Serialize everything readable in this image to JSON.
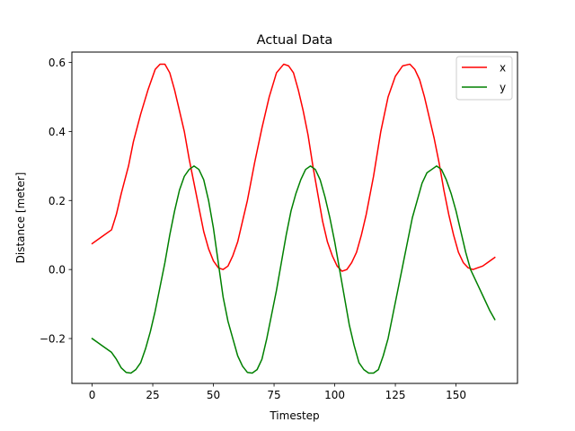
{
  "chart_data": {
    "type": "line",
    "title": "Actual Data",
    "xlabel": "Timestep",
    "ylabel": "Distance [meter]",
    "xlim": [
      -8.35,
      175.35
    ],
    "ylim": [
      -0.33,
      0.63
    ],
    "xticks": [
      0,
      25,
      50,
      75,
      100,
      125,
      150
    ],
    "xtick_labels": [
      "0",
      "25",
      "50",
      "75",
      "100",
      "125",
      "150"
    ],
    "yticks": [
      -0.2,
      0.0,
      0.2,
      0.4,
      0.6
    ],
    "ytick_labels": [
      "−0.2",
      "0.0",
      "0.2",
      "0.4",
      "0.6"
    ],
    "legend_position": "top-right",
    "series": [
      {
        "name": "x",
        "color": "#ff0000",
        "x": [
          0,
          4,
          8,
          10,
          12,
          15,
          17,
          20,
          23,
          26,
          28,
          30,
          32,
          34,
          36,
          38,
          40,
          42,
          44,
          46,
          48,
          50,
          52,
          54,
          56,
          58,
          60,
          62,
          64,
          67,
          70,
          73,
          76,
          79,
          81,
          83,
          85,
          87,
          89,
          91,
          93,
          95,
          97,
          99,
          101,
          103,
          105,
          107,
          109,
          111,
          113,
          116,
          119,
          122,
          125,
          128,
          131,
          133,
          135,
          137,
          139,
          141,
          143,
          145,
          147,
          149,
          151,
          153,
          155,
          157,
          159,
          161,
          163,
          166
        ],
        "y": [
          0.075,
          0.095,
          0.115,
          0.16,
          0.22,
          0.3,
          0.37,
          0.45,
          0.52,
          0.58,
          0.595,
          0.595,
          0.57,
          0.52,
          0.46,
          0.4,
          0.32,
          0.25,
          0.18,
          0.11,
          0.06,
          0.025,
          0.005,
          0.0,
          0.01,
          0.04,
          0.08,
          0.14,
          0.2,
          0.31,
          0.41,
          0.5,
          0.57,
          0.595,
          0.59,
          0.57,
          0.52,
          0.46,
          0.39,
          0.3,
          0.22,
          0.14,
          0.08,
          0.04,
          0.01,
          -0.005,
          0.0,
          0.02,
          0.05,
          0.1,
          0.16,
          0.27,
          0.4,
          0.5,
          0.56,
          0.59,
          0.595,
          0.58,
          0.55,
          0.5,
          0.44,
          0.38,
          0.31,
          0.23,
          0.16,
          0.1,
          0.05,
          0.02,
          0.005,
          0.0,
          0.005,
          0.01,
          0.02,
          0.035
        ]
      },
      {
        "name": "y",
        "color": "#008000",
        "x": [
          0,
          4,
          8,
          10,
          12,
          14,
          16,
          18,
          20,
          22,
          24,
          26,
          28,
          30,
          32,
          34,
          36,
          38,
          40,
          42,
          44,
          46,
          48,
          50,
          52,
          54,
          56,
          58,
          60,
          62,
          64,
          66,
          68,
          70,
          72,
          74,
          76,
          78,
          80,
          82,
          84,
          86,
          88,
          90,
          92,
          94,
          96,
          98,
          100,
          102,
          104,
          106,
          108,
          110,
          112,
          114,
          116,
          118,
          120,
          122,
          124,
          126,
          128,
          130,
          132,
          134,
          136,
          138,
          140,
          142,
          144,
          146,
          148,
          150,
          152,
          154,
          156,
          158,
          160,
          162,
          164,
          166
        ],
        "y": [
          -0.2,
          -0.22,
          -0.24,
          -0.26,
          -0.285,
          -0.298,
          -0.3,
          -0.29,
          -0.27,
          -0.23,
          -0.18,
          -0.12,
          -0.05,
          0.02,
          0.1,
          0.17,
          0.23,
          0.27,
          0.29,
          0.3,
          0.29,
          0.26,
          0.2,
          0.12,
          0.02,
          -0.08,
          -0.15,
          -0.2,
          -0.25,
          -0.28,
          -0.298,
          -0.3,
          -0.29,
          -0.26,
          -0.2,
          -0.13,
          -0.06,
          0.02,
          0.1,
          0.17,
          0.22,
          0.26,
          0.29,
          0.3,
          0.29,
          0.26,
          0.21,
          0.15,
          0.08,
          0.0,
          -0.08,
          -0.16,
          -0.22,
          -0.27,
          -0.29,
          -0.3,
          -0.3,
          -0.29,
          -0.25,
          -0.2,
          -0.13,
          -0.06,
          0.01,
          0.08,
          0.15,
          0.2,
          0.25,
          0.28,
          0.29,
          0.3,
          0.29,
          0.26,
          0.22,
          0.17,
          0.11,
          0.05,
          0.0,
          -0.03,
          -0.06,
          -0.09,
          -0.12,
          -0.145
        ]
      }
    ]
  }
}
